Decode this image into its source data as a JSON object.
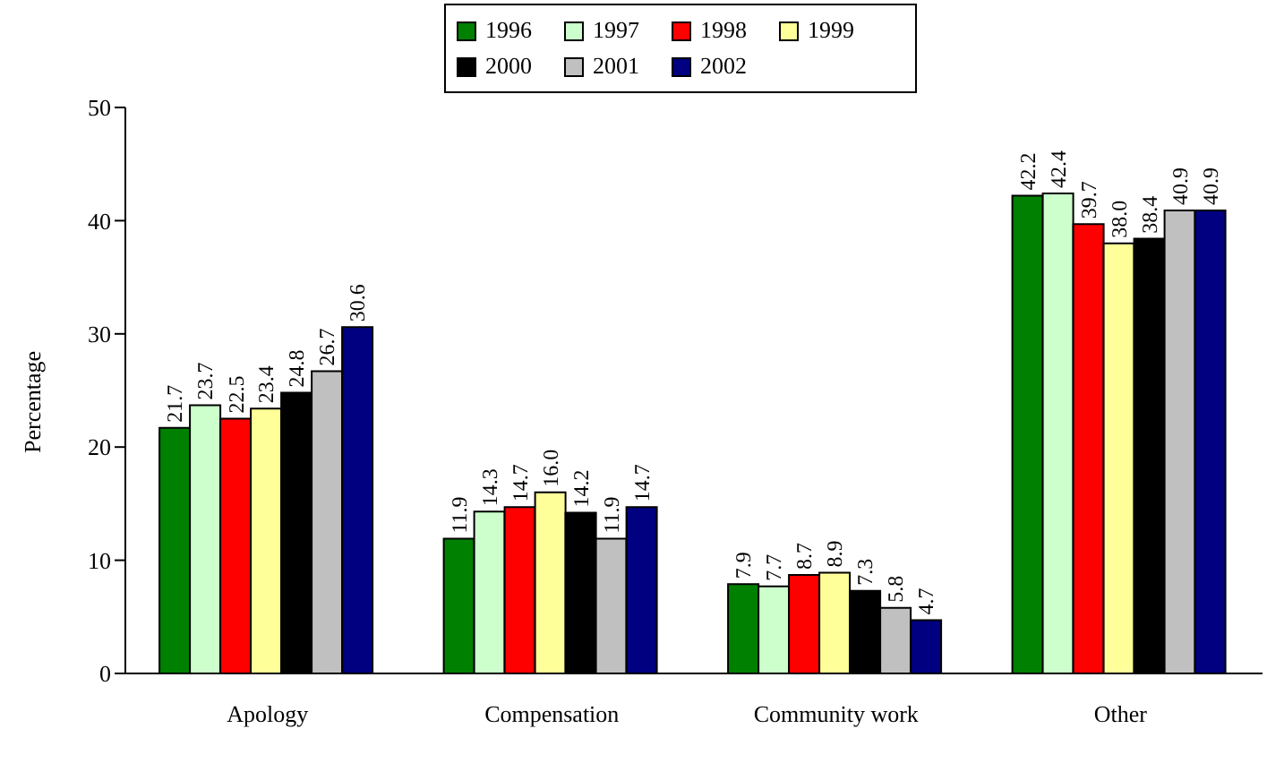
{
  "chart_data": {
    "type": "bar",
    "ylabel": "Percentage",
    "categories": [
      "Apology",
      "Compensation",
      "Community work",
      "Other"
    ],
    "ylim": [
      0,
      50
    ],
    "yticks": [
      0,
      10,
      20,
      30,
      40,
      50
    ],
    "grid": false,
    "legend": "top",
    "series": [
      {
        "name": "1996",
        "color": "#008000",
        "values": [
          21.7,
          11.9,
          7.9,
          42.2
        ],
        "value_labels": [
          "21.7",
          "11.9",
          "7.9",
          "42.2"
        ]
      },
      {
        "name": "1997",
        "color": "#ccffcc",
        "values": [
          23.7,
          14.3,
          7.7,
          42.4
        ],
        "value_labels": [
          "23.7",
          "14.3",
          "7.7",
          "42.4"
        ]
      },
      {
        "name": "1998",
        "color": "#ff0000",
        "values": [
          22.5,
          14.7,
          8.7,
          39.7
        ],
        "value_labels": [
          "22.5",
          "14.7",
          "8.7",
          "39.7"
        ]
      },
      {
        "name": "1999",
        "color": "#ffff99",
        "values": [
          23.4,
          16.0,
          8.9,
          38.0
        ],
        "value_labels": [
          "23.4",
          "16.0",
          "8.9",
          "38.0"
        ]
      },
      {
        "name": "2000",
        "color": "#000000",
        "values": [
          24.8,
          14.2,
          7.3,
          38.4
        ],
        "value_labels": [
          "24.8",
          "14.2",
          "7.3",
          "38.4"
        ]
      },
      {
        "name": "2001",
        "color": "#c0c0c0",
        "values": [
          26.7,
          11.9,
          5.8,
          40.9
        ],
        "value_labels": [
          "26.7",
          "11.9",
          "5.8",
          "40.9"
        ]
      },
      {
        "name": "2002",
        "color": "#000080",
        "values": [
          30.6,
          14.7,
          4.7,
          40.9
        ],
        "value_labels": [
          "30.6",
          "14.7",
          "4.7",
          "40.9"
        ]
      }
    ]
  }
}
